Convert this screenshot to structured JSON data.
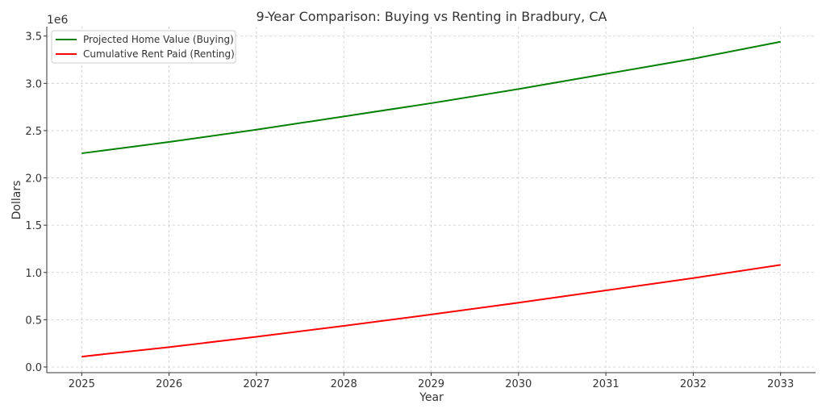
{
  "chart_data": {
    "type": "line",
    "title": "9-Year Comparison: Buying vs Renting in Bradbury, CA",
    "xlabel": "Year",
    "ylabel": "Dollars",
    "y_offset_label": "1e6",
    "x": [
      2025,
      2026,
      2027,
      2028,
      2029,
      2030,
      2031,
      2032,
      2033
    ],
    "xticks": [
      "2025",
      "2026",
      "2027",
      "2028",
      "2029",
      "2030",
      "2031",
      "2032",
      "2033"
    ],
    "yticks": [
      "0.0",
      "0.5",
      "1.0",
      "1.5",
      "2.0",
      "2.5",
      "3.0",
      "3.5"
    ],
    "xlim": [
      2024.6,
      2033.4
    ],
    "ylim": [
      -0.06,
      3.6
    ],
    "grid": true,
    "legend_position": "top-left",
    "series": [
      {
        "name": "Projected Home Value (Buying)",
        "color": "#008000",
        "values": [
          2.26,
          2.38,
          2.51,
          2.65,
          2.79,
          2.94,
          3.1,
          3.26,
          3.44
        ]
      },
      {
        "name": "Cumulative Rent Paid (Renting)",
        "color": "#ff0000",
        "values": [
          0.11,
          0.21,
          0.32,
          0.435,
          0.555,
          0.68,
          0.81,
          0.94,
          1.08
        ]
      }
    ]
  }
}
